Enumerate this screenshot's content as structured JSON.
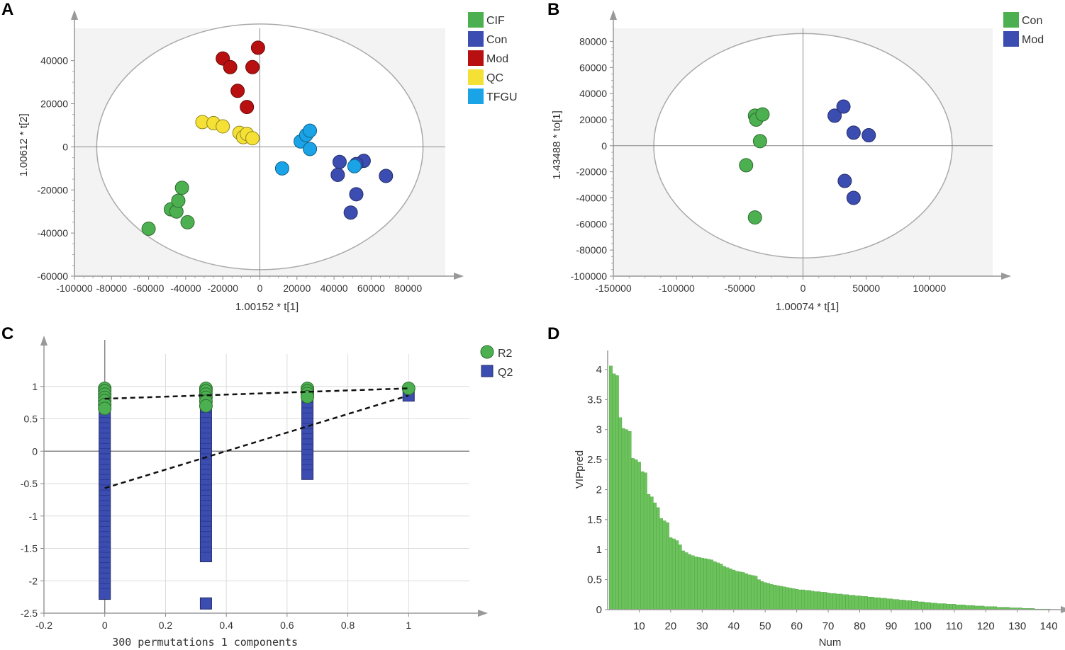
{
  "chart_data": [
    {
      "panel": "A",
      "type": "scatter",
      "title": "",
      "xlabel": "1.00152 * t[1]",
      "ylabel": "1.00612 * t[2]",
      "xlim": [
        -100000,
        100000
      ],
      "ylim": [
        -60000,
        55000
      ],
      "xticks": [
        -100000,
        -80000,
        -60000,
        -40000,
        -20000,
        0,
        20000,
        40000,
        60000,
        80000
      ],
      "xtick_labels": [
        "-100000",
        "-80000",
        "-60000",
        "-40000",
        "-20000",
        "0",
        "20000",
        "40000",
        "60000",
        "80000"
      ],
      "yticks": [
        -60000,
        -40000,
        -20000,
        0,
        20000,
        40000
      ],
      "ytick_labels": [
        "-60000",
        "-40000",
        "-20000",
        "0",
        "20000",
        "40000"
      ],
      "ellipse": {
        "rx": 88000,
        "ry": 57000
      },
      "legend": "top-right",
      "series": [
        {
          "name": "CIF",
          "color": "#4cb050",
          "x": [
            -60000,
            -48000,
            -45000,
            -44000,
            -42000,
            -39000
          ],
          "y": [
            -38000,
            -29000,
            -30000,
            -25000,
            -19000,
            -35000
          ]
        },
        {
          "name": "Con",
          "color": "#3c4db1",
          "x": [
            42000,
            43000,
            49000,
            52000,
            56000,
            68000,
            52000
          ],
          "y": [
            -13000,
            -7000,
            -30500,
            -22000,
            -6500,
            -13500,
            -8000
          ]
        },
        {
          "name": "Mod",
          "color": "#b81010",
          "x": [
            -20000,
            -16000,
            -12000,
            -7000,
            -4000,
            -1000
          ],
          "y": [
            41000,
            37000,
            26000,
            18500,
            37000,
            46000
          ]
        },
        {
          "name": "QC",
          "color": "#f5e135",
          "x": [
            -31000,
            -25000,
            -20000,
            -11000,
            -9000,
            -7000,
            -4000
          ],
          "y": [
            11500,
            11000,
            9500,
            6500,
            4500,
            6000,
            4000
          ]
        },
        {
          "name": "TFGU",
          "color": "#1aa3e6",
          "x": [
            12000,
            22000,
            25000,
            27000,
            27000,
            51000
          ],
          "y": [
            -10000,
            2500,
            5500,
            7500,
            -1000,
            -9000
          ]
        }
      ]
    },
    {
      "panel": "B",
      "type": "scatter",
      "title": "",
      "xlabel": "1.00074 * t[1]",
      "ylabel": "1.43488 * to[1]",
      "xlim": [
        -150000,
        150000
      ],
      "ylim": [
        -100000,
        90000
      ],
      "xticks": [
        -150000,
        -100000,
        -50000,
        0,
        50000,
        100000
      ],
      "xtick_labels": [
        "-150000",
        "-100000",
        "-50000",
        "0",
        "50000",
        "100000"
      ],
      "yticks": [
        -100000,
        -80000,
        -60000,
        -40000,
        -20000,
        0,
        20000,
        40000,
        60000,
        80000
      ],
      "ytick_labels": [
        "-100000",
        "-80000",
        "-60000",
        "-40000",
        "-20000",
        "0",
        "20000",
        "40000",
        "60000",
        "80000"
      ],
      "ellipse": {
        "rx": 118000,
        "ry": 86000
      },
      "legend": "top-right",
      "series": [
        {
          "name": "Con",
          "color": "#4cb050",
          "x": [
            -45000,
            -38000,
            -38000,
            -37000,
            -34000,
            -32000
          ],
          "y": [
            -15000,
            -55000,
            23000,
            20000,
            3500,
            24000
          ]
        },
        {
          "name": "Mod",
          "color": "#3c4db1",
          "x": [
            25000,
            32000,
            33000,
            40000,
            40000,
            52000
          ],
          "y": [
            23000,
            30000,
            -27000,
            10000,
            -40000,
            8000
          ]
        }
      ]
    },
    {
      "panel": "C",
      "type": "scatter",
      "title": "",
      "xlabel": "300 permutations 1 components",
      "ylabel": "",
      "xlim": [
        -0.2,
        1.2
      ],
      "ylim": [
        -2.5,
        1.5
      ],
      "xticks": [
        -0.2,
        0,
        0.2,
        0.4,
        0.6,
        0.8,
        1
      ],
      "xtick_labels": [
        "-0.2",
        "0",
        "0.2",
        "0.4",
        "0.6",
        "0.8",
        "1"
      ],
      "yticks": [
        -2.5,
        -2,
        -1.5,
        -1,
        -0.5,
        0,
        0.5,
        1
      ],
      "ytick_labels": [
        "-2.5",
        "-2",
        "-1.5",
        "-1",
        "-0.5",
        "0",
        "0.5",
        "1"
      ],
      "legend": "top-right",
      "series": [
        {
          "name": "R2",
          "color": "#4cb050",
          "marker": "circle",
          "x": [
            0,
            0,
            0,
            0,
            0,
            0,
            0,
            0.333,
            0.333,
            0.333,
            0.333,
            0.333,
            0.333,
            0.667,
            0.667,
            0.667,
            0.667,
            1
          ],
          "y": [
            0.97,
            0.93,
            0.88,
            0.83,
            0.78,
            0.72,
            0.66,
            0.97,
            0.93,
            0.88,
            0.83,
            0.77,
            0.7,
            0.97,
            0.93,
            0.89,
            0.84,
            0.97
          ]
        },
        {
          "name": "Q2",
          "color": "#3c4db1",
          "marker": "square",
          "columns": [
            {
              "x": 0,
              "min": -2.2,
              "max": 0.68
            },
            {
              "x": 0.333,
              "min": -1.62,
              "max": 0.68,
              "outlier": -2.35
            },
            {
              "x": 0.667,
              "min": -0.35,
              "max": 0.83
            },
            {
              "x": 1,
              "value": 0.86
            }
          ]
        }
      ],
      "regression_lines": [
        {
          "name": "R2",
          "points": [
            [
              0,
              0.81
            ],
            [
              1,
              0.97
            ]
          ]
        },
        {
          "name": "Q2",
          "points": [
            [
              0,
              -0.57
            ],
            [
              1,
              0.86
            ]
          ]
        }
      ]
    },
    {
      "panel": "D",
      "type": "bar",
      "title": "",
      "xlabel": "Num",
      "ylabel": "VIPpred",
      "color": "#6cc35c",
      "xlim": [
        0,
        142
      ],
      "ylim": [
        0,
        4.2
      ],
      "xticks": [
        10,
        20,
        30,
        40,
        50,
        60,
        70,
        80,
        90,
        100,
        110,
        120,
        130,
        140
      ],
      "xtick_labels": [
        "10",
        "20",
        "30",
        "40",
        "50",
        "60",
        "70",
        "80",
        "90",
        "100",
        "110",
        "120",
        "130",
        "140"
      ],
      "yticks": [
        0,
        0.5,
        1,
        1.5,
        2,
        2.5,
        3,
        3.5,
        4
      ],
      "ytick_labels": [
        "0",
        "0.5",
        "1",
        "1.5",
        "2",
        "2.5",
        "3",
        "3.5",
        "4"
      ],
      "values": [
        4.06,
        3.93,
        3.9,
        3.2,
        3.02,
        3.0,
        2.97,
        2.52,
        2.5,
        2.46,
        2.3,
        2.28,
        1.92,
        1.88,
        1.78,
        1.7,
        1.52,
        1.48,
        1.45,
        1.2,
        1.18,
        1.15,
        1.08,
        0.98,
        0.95,
        0.92,
        0.9,
        0.88,
        0.87,
        0.86,
        0.85,
        0.84,
        0.83,
        0.8,
        0.78,
        0.76,
        0.72,
        0.7,
        0.68,
        0.66,
        0.64,
        0.63,
        0.62,
        0.6,
        0.58,
        0.57,
        0.56,
        0.5,
        0.47,
        0.45,
        0.44,
        0.42,
        0.41,
        0.4,
        0.39,
        0.38,
        0.37,
        0.36,
        0.35,
        0.34,
        0.33,
        0.33,
        0.32,
        0.32,
        0.31,
        0.3,
        0.3,
        0.29,
        0.29,
        0.28,
        0.27,
        0.27,
        0.26,
        0.26,
        0.25,
        0.25,
        0.24,
        0.24,
        0.23,
        0.23,
        0.22,
        0.22,
        0.21,
        0.21,
        0.2,
        0.2,
        0.19,
        0.19,
        0.18,
        0.18,
        0.17,
        0.17,
        0.16,
        0.16,
        0.15,
        0.15,
        0.14,
        0.14,
        0.13,
        0.13,
        0.12,
        0.12,
        0.11,
        0.11,
        0.1,
        0.1,
        0.1,
        0.09,
        0.09,
        0.09,
        0.08,
        0.08,
        0.08,
        0.07,
        0.07,
        0.07,
        0.06,
        0.06,
        0.06,
        0.05,
        0.05,
        0.05,
        0.05,
        0.04,
        0.04,
        0.04,
        0.04,
        0.03,
        0.03,
        0.03,
        0.03,
        0.02,
        0.02,
        0.02,
        0.02,
        0.01,
        0.01,
        0.01,
        0.01,
        0.01
      ]
    }
  ]
}
